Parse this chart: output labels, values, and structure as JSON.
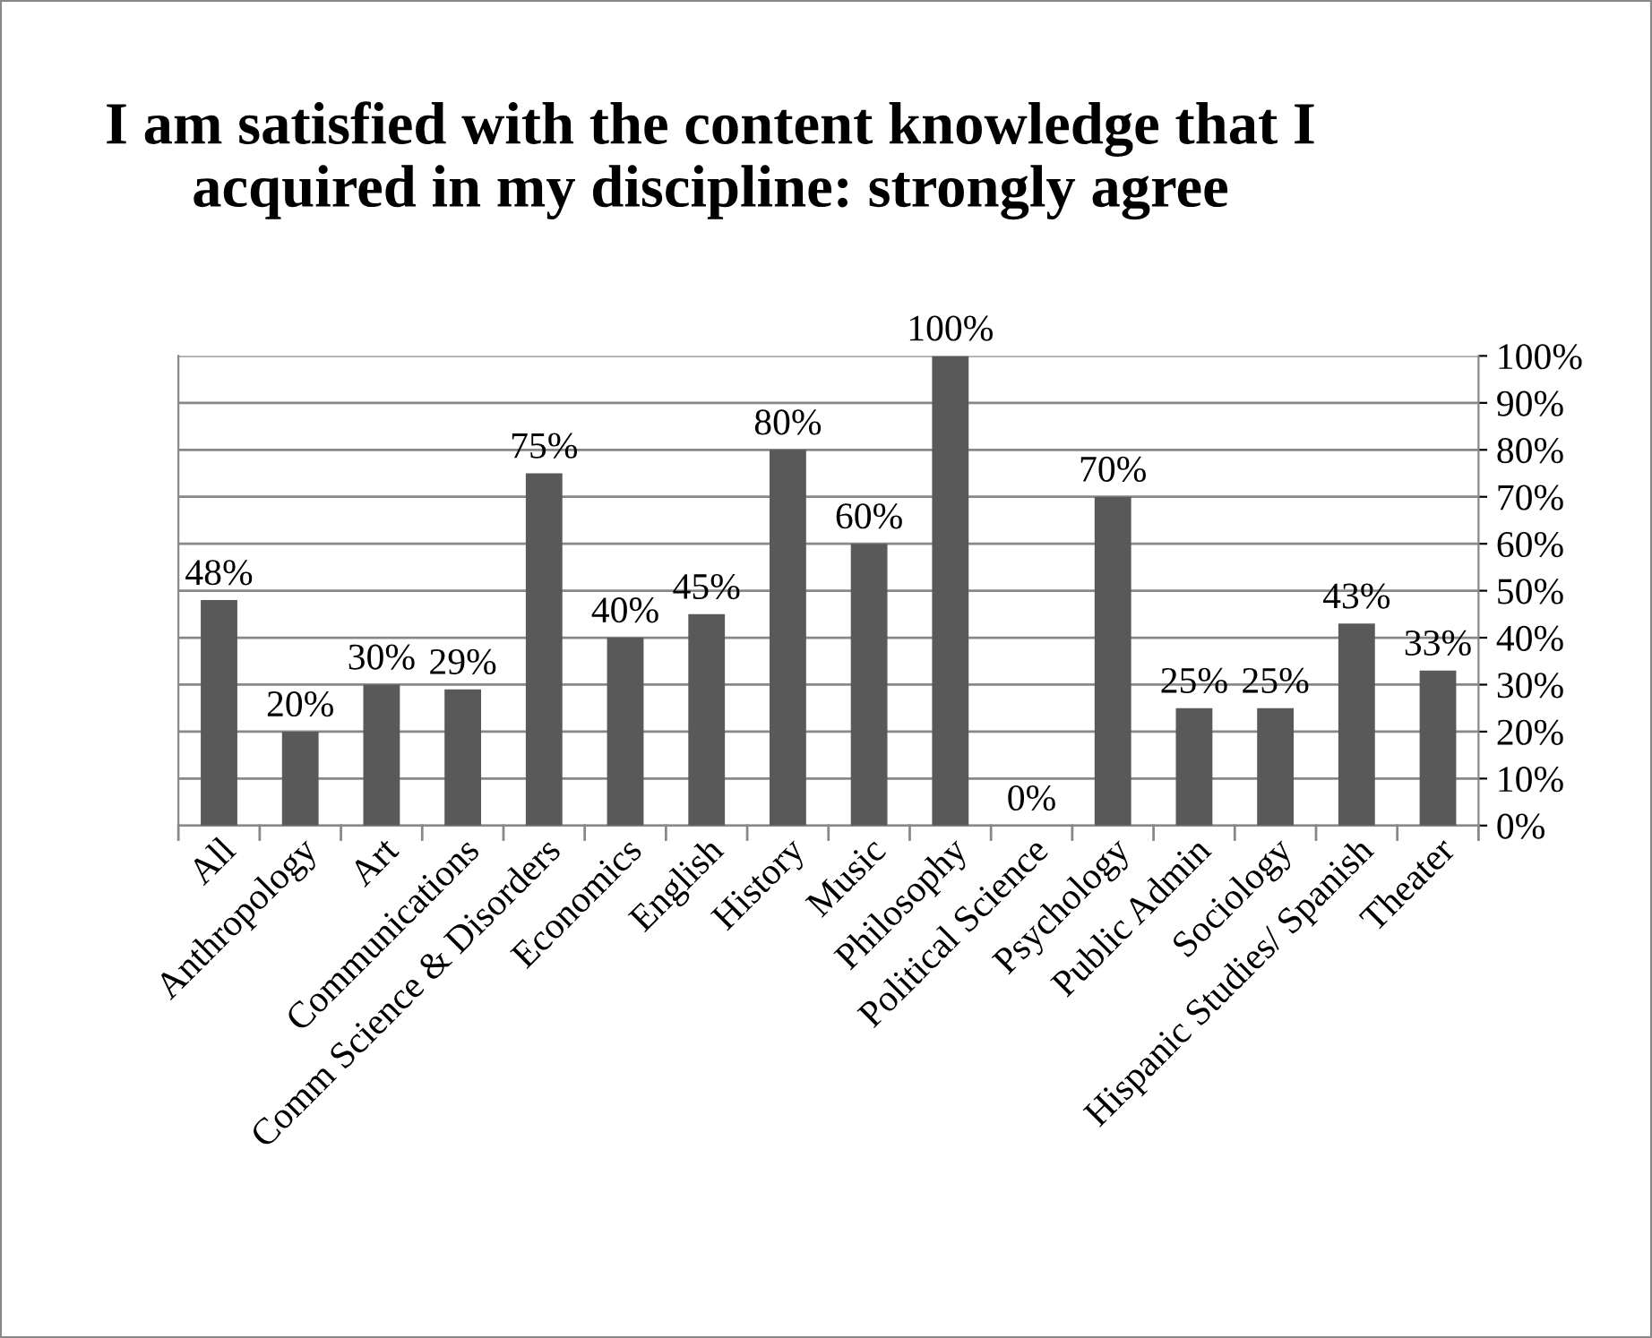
{
  "chart_data": {
    "type": "bar",
    "title": "I am satisfied with the content knowledge that I acquired in my discipline: strongly agree",
    "categories": [
      "All",
      "Anthropology",
      "Art",
      "Communications",
      "Comm Science & Disorders",
      "Economics",
      "English",
      "History",
      "Music",
      "Philosophy",
      "Political Science",
      "Psychology",
      "Public Admin",
      "Sociology",
      "Hispanic Studies/ Spanish",
      "Theater"
    ],
    "values": [
      48,
      20,
      30,
      29,
      75,
      40,
      45,
      80,
      60,
      100,
      0,
      70,
      25,
      25,
      43,
      33
    ],
    "value_labels": [
      "48%",
      "20%",
      "30%",
      "29%",
      "75%",
      "40%",
      "45%",
      "80%",
      "60%",
      "100%",
      "0%",
      "70%",
      "25%",
      "25%",
      "43%",
      "33%"
    ],
    "color": "#595959",
    "ylim": [
      0,
      100
    ],
    "yticks": [
      {
        "value": 0,
        "label": "0%"
      },
      {
        "value": 10,
        "label": "10%"
      },
      {
        "value": 20,
        "label": "20%"
      },
      {
        "value": 30,
        "label": "30%"
      },
      {
        "value": 40,
        "label": "40%"
      },
      {
        "value": 50,
        "label": "50%"
      },
      {
        "value": 60,
        "label": "60%"
      },
      {
        "value": 70,
        "label": "70%"
      },
      {
        "value": 80,
        "label": "80%"
      },
      {
        "value": 90,
        "label": "90%"
      },
      {
        "value": 100,
        "label": "100%"
      }
    ],
    "grid": "y",
    "legend": false
  }
}
